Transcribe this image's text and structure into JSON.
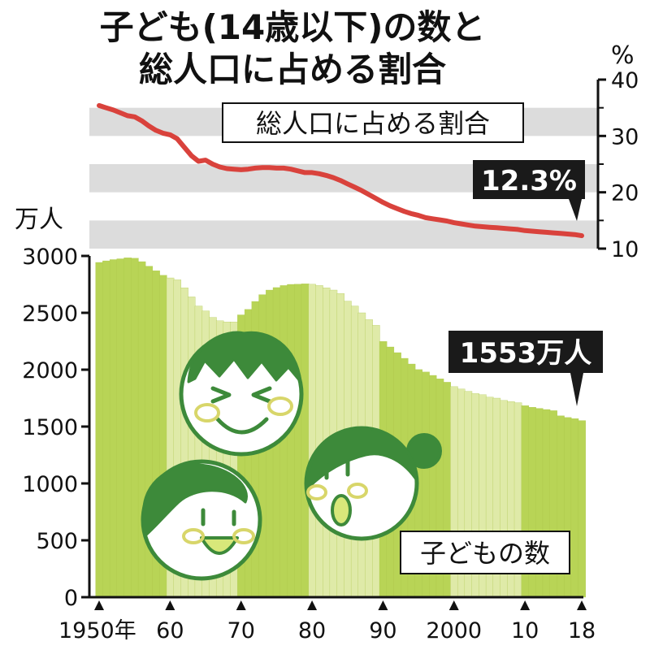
{
  "chart_data": {
    "type": "bar",
    "title_line1": "子ども(14歳以下)の数と",
    "title_line2": "総人口に占める割合",
    "bar_label": "子どもの数",
    "line_label": "総人口に占める割合",
    "left_unit": "万人",
    "right_unit": "%",
    "left_ticks": [
      "0",
      "500",
      "1000",
      "1500",
      "2000",
      "2500",
      "3000"
    ],
    "left_tick_values": [
      0,
      500,
      1000,
      1500,
      2000,
      2500,
      3000
    ],
    "right_ticks": [
      "10",
      "20",
      "30",
      "40"
    ],
    "right_tick_values": [
      10,
      20,
      30,
      40
    ],
    "x_ticks": [
      {
        "year": 1950,
        "label": "1950年"
      },
      {
        "year": 1960,
        "label": "60"
      },
      {
        "year": 1970,
        "label": "70"
      },
      {
        "year": 1980,
        "label": "80"
      },
      {
        "year": 1990,
        "label": "90"
      },
      {
        "year": 2000,
        "label": "2000"
      },
      {
        "year": 2010,
        "label": "10"
      },
      {
        "year": 2018,
        "label": "18"
      }
    ],
    "ylim_left": [
      0,
      3000
    ],
    "ylim_right": [
      10,
      40
    ],
    "bar_callout": "1553万人",
    "line_callout": "12.3%",
    "colors": {
      "bar_dark": "#b8d456",
      "bar_light": "#dfeaa8",
      "line": "#d9423c",
      "band": "#dcdcdc",
      "face_stroke": "#3d8a3a",
      "callout_bg": "#1a1a1a"
    },
    "years": [
      1950,
      1951,
      1952,
      1953,
      1954,
      1955,
      1956,
      1957,
      1958,
      1959,
      1960,
      1961,
      1962,
      1963,
      1964,
      1965,
      1966,
      1967,
      1968,
      1969,
      1970,
      1971,
      1972,
      1973,
      1974,
      1975,
      1976,
      1977,
      1978,
      1979,
      1980,
      1981,
      1982,
      1983,
      1984,
      1985,
      1986,
      1987,
      1988,
      1989,
      1990,
      1991,
      1992,
      1993,
      1994,
      1995,
      1996,
      1997,
      1998,
      1999,
      2000,
      2001,
      2002,
      2003,
      2004,
      2005,
      2006,
      2007,
      2008,
      2009,
      2010,
      2011,
      2012,
      2013,
      2014,
      2015,
      2016,
      2017,
      2018
    ],
    "children": [
      2943,
      2957,
      2968,
      2975,
      2984,
      2980,
      2950,
      2910,
      2870,
      2830,
      2807,
      2790,
      2720,
      2640,
      2560,
      2517,
      2460,
      2430,
      2420,
      2420,
      2482,
      2530,
      2600,
      2660,
      2700,
      2722,
      2740,
      2750,
      2752,
      2755,
      2751,
      2740,
      2720,
      2700,
      2670,
      2603,
      2560,
      2500,
      2440,
      2390,
      2249,
      2200,
      2150,
      2100,
      2050,
      2001,
      1980,
      1950,
      1920,
      1890,
      1851,
      1830,
      1810,
      1790,
      1780,
      1759,
      1750,
      1730,
      1720,
      1710,
      1684,
      1670,
      1660,
      1650,
      1640,
      1595,
      1580,
      1570,
      1553
    ],
    "share": [
      35.4,
      35.0,
      34.6,
      34.1,
      33.6,
      33.4,
      32.7,
      31.8,
      31.0,
      30.5,
      30.2,
      29.5,
      28.0,
      26.5,
      25.5,
      25.7,
      25.0,
      24.5,
      24.2,
      24.1,
      24.0,
      24.1,
      24.3,
      24.4,
      24.4,
      24.3,
      24.3,
      24.1,
      23.8,
      23.5,
      23.5,
      23.3,
      23.0,
      22.6,
      22.1,
      21.5,
      20.9,
      20.3,
      19.6,
      18.9,
      18.2,
      17.6,
      17.1,
      16.6,
      16.2,
      15.9,
      15.5,
      15.3,
      15.1,
      14.9,
      14.6,
      14.4,
      14.2,
      14.0,
      13.9,
      13.8,
      13.7,
      13.6,
      13.5,
      13.4,
      13.2,
      13.1,
      13.0,
      12.9,
      12.8,
      12.7,
      12.6,
      12.5,
      12.3
    ]
  }
}
